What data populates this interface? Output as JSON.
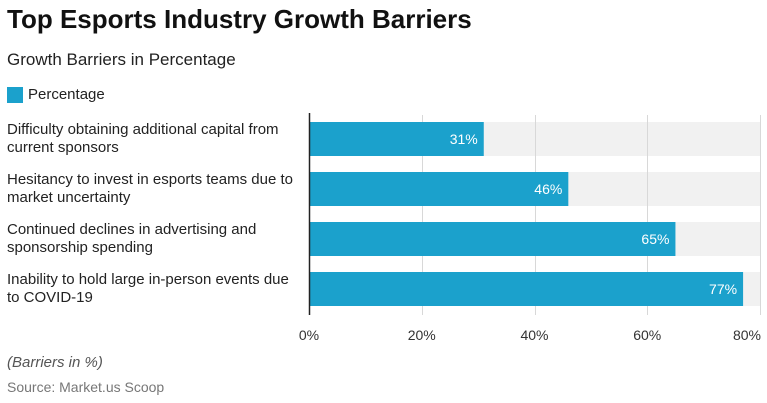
{
  "chart_data": {
    "type": "bar",
    "orientation": "horizontal",
    "title": "Top Esports Industry Growth Barriers",
    "subtitle": "Growth Barriers in Percentage",
    "categories": [
      [
        "Difficulty obtaining additional capital from",
        "current sponsors"
      ],
      [
        "Hesitancy to invest in esports teams due to",
        "market uncertainty"
      ],
      [
        "Continued declines in advertising and",
        "sponsorship spending"
      ],
      [
        "Inability to hold large in-person events due",
        "to COVID-19"
      ]
    ],
    "series": [
      {
        "name": "Percentage",
        "values": [
          31,
          46,
          65,
          77
        ],
        "labels": [
          "31%",
          "46%",
          "65%",
          "77%"
        ]
      }
    ],
    "xlim": [
      0,
      80
    ],
    "x_ticks": [
      {
        "value": 0,
        "label": "0%"
      },
      {
        "value": 20,
        "label": "20%"
      },
      {
        "value": 40,
        "label": "40%"
      },
      {
        "value": 60,
        "label": "60%"
      },
      {
        "value": 80,
        "label": "80%"
      }
    ],
    "grid": true,
    "legend_position": "top-left",
    "colors": {
      "bar": "#1ba1cc",
      "track": "#f1f1f1",
      "grid": "#d8d8d8",
      "axis": "#222222"
    }
  },
  "footer": {
    "note": "(Barriers in %)",
    "source": "Source: Market.us Scoop"
  }
}
